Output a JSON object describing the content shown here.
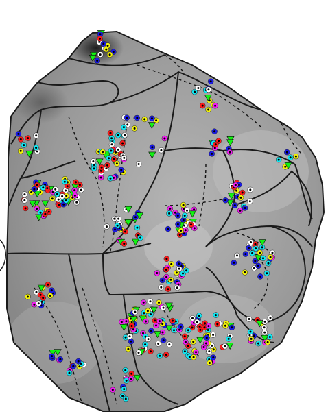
{
  "figure": {
    "background": "#ffffff",
    "map_fill": "#9f9f9f",
    "boundary_color": "#1a1a1a",
    "sulcus_color": "#111111",
    "legend": [],
    "marker_types": [
      {
        "name": "red-dot",
        "ring": "#ff1a1a"
      },
      {
        "name": "yellow-dot",
        "ring": "#f2f20a"
      },
      {
        "name": "white-dot",
        "ring": "#ffffff"
      },
      {
        "name": "cyan-dot",
        "ring": "#12e5f0"
      },
      {
        "name": "magenta-dot",
        "ring": "#f01ef0"
      },
      {
        "name": "blue-dot",
        "ring": "#1a1ae6"
      },
      {
        "name": "green-triangle",
        "fill": "#13f013"
      }
    ]
  }
}
